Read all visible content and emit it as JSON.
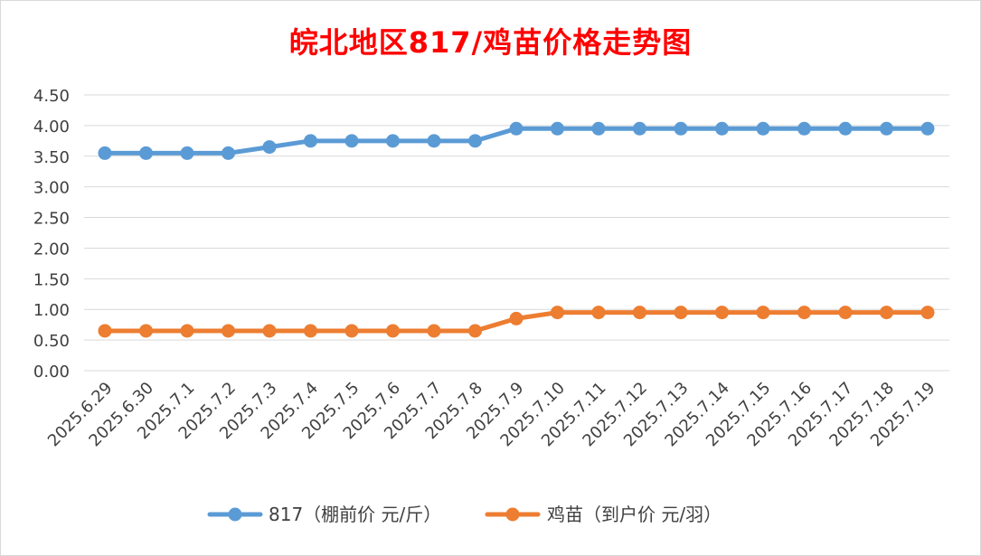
{
  "chart_data": {
    "type": "line",
    "title": "皖北地区817/鸡苗价格走势图",
    "xlabel": "",
    "ylabel": "",
    "categories": [
      "2025.6.29",
      "2025.6.30",
      "2025.7.1",
      "2025.7.2",
      "2025.7.3",
      "2025.7.4",
      "2025.7.5",
      "2025.7.6",
      "2025.7.7",
      "2025.7.8",
      "2025.7.9",
      "2025.7.10",
      "2025.7.11",
      "2025.7.12",
      "2025.7.13",
      "2025.7.14",
      "2025.7.15",
      "2025.7.16",
      "2025.7.17",
      "2025.7.18",
      "2025.7.19"
    ],
    "series": [
      {
        "name": "817（棚前价 元/斤）",
        "color": "#5b9bd5",
        "values": [
          3.55,
          3.55,
          3.55,
          3.55,
          3.65,
          3.75,
          3.75,
          3.75,
          3.75,
          3.75,
          3.95,
          3.95,
          3.95,
          3.95,
          3.95,
          3.95,
          3.95,
          3.95,
          3.95,
          3.95,
          3.95
        ]
      },
      {
        "name": "鸡苗（到户价 元/羽）",
        "color": "#ed7d31",
        "values": [
          0.65,
          0.65,
          0.65,
          0.65,
          0.65,
          0.65,
          0.65,
          0.65,
          0.65,
          0.65,
          0.85,
          0.95,
          0.95,
          0.95,
          0.95,
          0.95,
          0.95,
          0.95,
          0.95,
          0.95,
          0.95
        ]
      }
    ],
    "ylim": [
      0,
      4.5
    ],
    "yticks": [
      "0.00",
      "0.50",
      "1.00",
      "1.50",
      "2.00",
      "2.50",
      "3.00",
      "3.50",
      "4.00",
      "4.50"
    ],
    "grid": true,
    "legend": "bottom",
    "title_color": "#ff0000",
    "gridline_color": "#d9d9d9"
  }
}
